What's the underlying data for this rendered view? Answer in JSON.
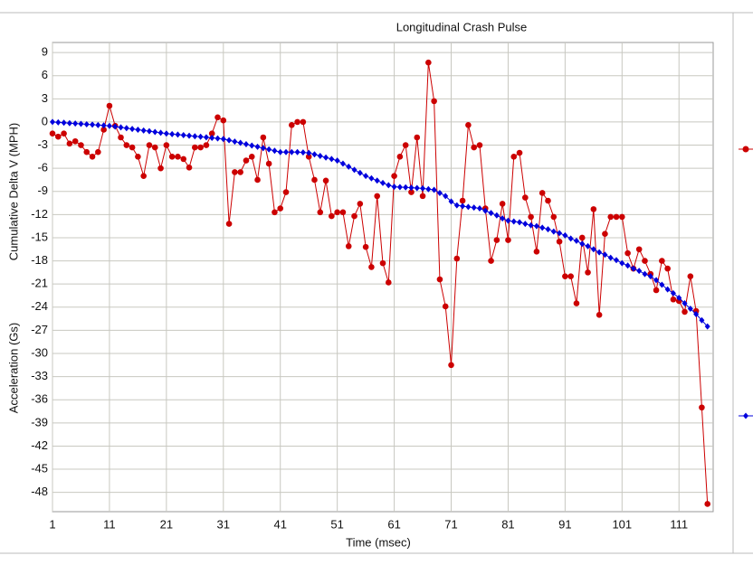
{
  "chart_data": {
    "type": "line",
    "title": "Longitudinal Crash Pulse",
    "x_label": "Time (msec)",
    "y_labels": [
      "Acceleration (Gs)",
      "Cumulative Delta V (MPH)"
    ],
    "x": [
      1,
      2,
      3,
      4,
      5,
      6,
      7,
      8,
      9,
      10,
      11,
      12,
      13,
      14,
      15,
      16,
      17,
      18,
      19,
      20,
      21,
      22,
      23,
      24,
      25,
      26,
      27,
      28,
      29,
      30,
      31,
      32,
      33,
      34,
      35,
      36,
      37,
      38,
      39,
      40,
      41,
      42,
      43,
      44,
      45,
      46,
      47,
      48,
      49,
      50,
      51,
      52,
      53,
      54,
      55,
      56,
      57,
      58,
      59,
      60,
      61,
      62,
      63,
      64,
      65,
      66,
      67,
      68,
      69,
      70,
      71,
      72,
      73,
      74,
      75,
      76,
      77,
      78,
      79,
      80,
      81,
      82,
      83,
      84,
      85,
      86,
      87,
      88,
      89,
      90,
      91,
      92,
      93,
      94,
      95,
      96,
      97,
      98,
      99,
      100,
      101,
      102,
      103,
      104,
      105,
      106,
      107,
      108,
      109,
      110,
      111,
      112,
      113,
      114,
      115,
      116
    ],
    "series": [
      {
        "color": "#cc0000",
        "marker": "circle",
        "values": [
          -1.5,
          -1.9,
          -1.5,
          -2.8,
          -2.5,
          -3,
          -3.9,
          -4.5,
          -3.9,
          -1,
          2.1,
          -0.5,
          -2,
          -3,
          -3.3,
          -4.5,
          -7,
          -3,
          -3.3,
          -6,
          -3,
          -4.5,
          -4.5,
          -4.8,
          -5.9,
          -3.3,
          -3.3,
          -3,
          -1.5,
          0.6,
          0.2,
          -13.2,
          -6.5,
          -6.5,
          -5,
          -4.5,
          -7.5,
          -2,
          -5.4,
          -11.7,
          -11.2,
          -9.1,
          -0.4,
          0,
          0,
          -4.5,
          -7.5,
          -11.7,
          -7.6,
          -12.2,
          -11.7,
          -11.7,
          -16.1,
          -12.2,
          -10.6,
          -16.2,
          -18.8,
          -9.6,
          -18.3,
          -20.8,
          -7,
          -4.5,
          -3,
          -9.1,
          -2,
          -9.6,
          7.7,
          2.7,
          -20.4,
          -23.9,
          -31.5,
          -17.7,
          -10.2,
          -0.4,
          -3.3,
          -3,
          -11.2,
          -18,
          -15.3,
          -10.6,
          -15.3,
          -4.5,
          -4,
          -9.8,
          -12.3,
          -16.8,
          -9.2,
          -10.2,
          -12.3,
          -15.5,
          -20,
          -20,
          -23.5,
          -15,
          -19.5,
          -11.3,
          -25,
          -14.5,
          -12.3,
          -12.3,
          -12.3,
          -17,
          -19,
          -16.5,
          -18,
          -19.7,
          -21.8,
          -18,
          -19,
          -23,
          -23.2,
          -24.6,
          -20,
          -24.5,
          -37,
          -49.5
        ]
      },
      {
        "color": "#0000dd",
        "marker": "diamond",
        "values": [
          0,
          -0.05,
          -0.1,
          -0.15,
          -0.2,
          -0.25,
          -0.3,
          -0.35,
          -0.4,
          -0.45,
          -0.5,
          -0.6,
          -0.7,
          -0.8,
          -0.9,
          -1.0,
          -1.1,
          -1.2,
          -1.3,
          -1.4,
          -1.5,
          -1.57,
          -1.64,
          -1.71,
          -1.78,
          -1.85,
          -1.92,
          -1.99,
          -2.06,
          -2.13,
          -2.2,
          -2.37,
          -2.54,
          -2.71,
          -2.88,
          -3.05,
          -3.22,
          -3.39,
          -3.56,
          -3.73,
          -3.9,
          -3.9,
          -3.9,
          -3.9,
          -3.95,
          -4.0,
          -4.2,
          -4.4,
          -4.6,
          -4.8,
          -5.0,
          -5.4,
          -5.8,
          -6.2,
          -6.6,
          -7.0,
          -7.3,
          -7.6,
          -7.9,
          -8.2,
          -8.4,
          -8.44,
          -8.48,
          -8.52,
          -8.56,
          -8.6,
          -8.7,
          -8.8,
          -9.2,
          -9.6,
          -10.3,
          -10.8,
          -10.9,
          -11.0,
          -11.1,
          -11.2,
          -11.5,
          -11.8,
          -12.1,
          -12.5,
          -12.8,
          -12.9,
          -13.0,
          -13.2,
          -13.4,
          -13.5,
          -13.7,
          -13.9,
          -14.2,
          -14.4,
          -14.7,
          -15.1,
          -15.4,
          -15.8,
          -16.1,
          -16.5,
          -16.9,
          -17.2,
          -17.6,
          -17.9,
          -18.3,
          -18.6,
          -19.0,
          -19.3,
          -19.7,
          -20.0,
          -20.5,
          -21.1,
          -21.7,
          -22.2,
          -22.8,
          -23.5,
          -24.2,
          -24.9,
          -25.7,
          -26.5
        ]
      }
    ],
    "xlim": [
      1,
      117
    ],
    "xticks": [
      1,
      11,
      21,
      31,
      41,
      51,
      61,
      71,
      81,
      91,
      101,
      111
    ],
    "ylim": [
      -50.5,
      10.3
    ],
    "yticks": [
      9,
      6,
      3,
      0,
      -3,
      -6,
      -9,
      -12,
      -15,
      -18,
      -21,
      -24,
      -27,
      -30,
      -33,
      -36,
      -39,
      -42,
      -45,
      -48
    ],
    "grid": true
  }
}
